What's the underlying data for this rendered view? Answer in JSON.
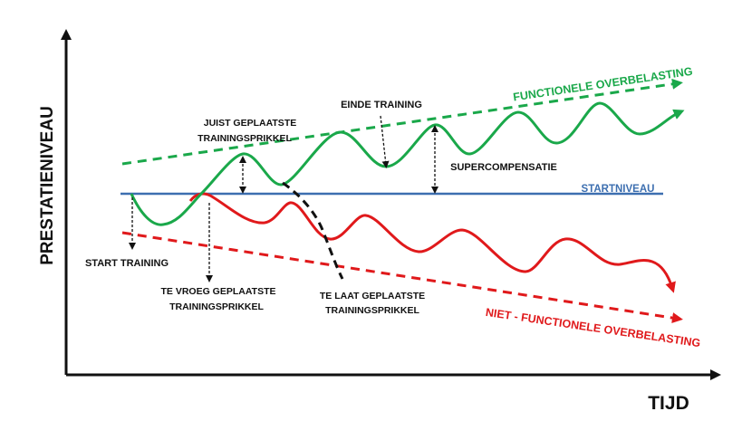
{
  "axes": {
    "y_label": "PRESTATIENIVEAU",
    "x_label": "TIJD"
  },
  "lines": {
    "functional": "FUNCTIONELE OVERBELASTING",
    "non_functional": "NIET - FUNCTIONELE OVERBELASTING",
    "baseline": "STARTNIVEAU"
  },
  "annotations": {
    "start": "START TRAINING",
    "correct_1": "JUIST GEPLAATSTE",
    "correct_2": "TRAININGSPRIKKEL",
    "end": "EINDE TRAINING",
    "supercomp": "SUPERCOMPENSATIE",
    "early_1": "TE VROEG GEPLAATSTE",
    "early_2": "TRAININGSPRIKKEL",
    "late_1": "TE LAAT GEPLAATSTE",
    "late_2": "TRAININGSPRIKKEL"
  },
  "colors": {
    "green": "#1aa84a",
    "red": "#e0191b",
    "blue": "#3d6fb0",
    "axis": "#111111"
  }
}
